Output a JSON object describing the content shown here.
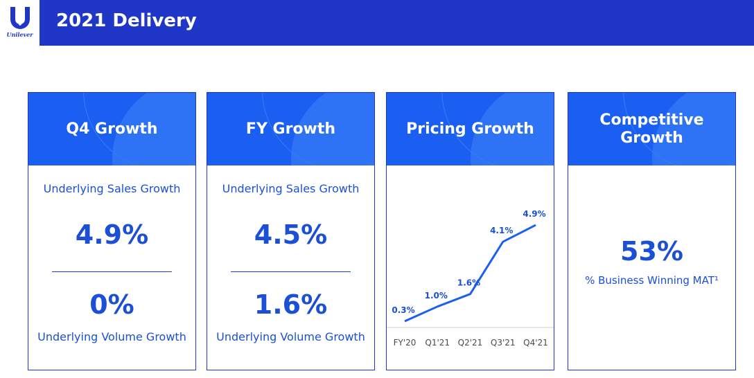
{
  "logo": {
    "wordmark": "Unilever"
  },
  "header": {
    "title": "2021 Delivery"
  },
  "cards": [
    {
      "title": "Q4 Growth",
      "top_label": "Underlying Sales Growth",
      "top_value": "4.9%",
      "bottom_value": "0%",
      "bottom_label": "Underlying Volume Growth"
    },
    {
      "title": "FY Growth",
      "top_label": "Underlying Sales Growth",
      "top_value": "4.5%",
      "bottom_value": "1.6%",
      "bottom_label": "Underlying Volume Growth"
    },
    {
      "title": "Pricing Growth"
    },
    {
      "title_line1": "Competitive",
      "title_line2": "Growth",
      "value": "53%",
      "label": "% Business Winning MAT¹"
    }
  ],
  "colors": {
    "header": "#1f36c7",
    "card_head": "#1a5ff2",
    "accent_text": "#1a4fd6"
  },
  "chart_data": {
    "type": "line",
    "categories": [
      "FY'20",
      "Q1'21",
      "Q2'21",
      "Q3'21",
      "Q4'21"
    ],
    "values": [
      0.3,
      1.0,
      1.6,
      4.1,
      4.9
    ],
    "data_labels": [
      "0.3%",
      "1.0%",
      "1.6%",
      "4.1%",
      "4.9%"
    ],
    "title": "Pricing Growth",
    "xlabel": "",
    "ylabel": "",
    "grid": false
  }
}
